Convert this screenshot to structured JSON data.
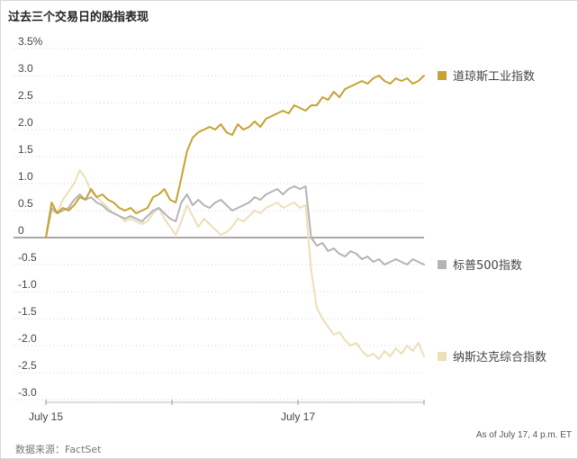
{
  "chart_data": {
    "type": "line",
    "title": "过去三个交易日的股指表现",
    "ylim": [
      -3.0,
      3.5
    ],
    "ytick_values": [
      3.5,
      3.0,
      2.5,
      2.0,
      1.5,
      1.0,
      0.5,
      0,
      -0.5,
      -1.0,
      -1.5,
      -2.0,
      -2.5,
      -3.0
    ],
    "ytick_labels": [
      "3.5%",
      "3.0",
      "2.5",
      "2.0",
      "1.5",
      "1.0",
      "0.5",
      "0",
      "-0.5",
      "-1.0",
      "-1.5",
      "-2.0",
      "-2.5",
      "-3.0"
    ],
    "xticks": [
      "July 15",
      "",
      "July 17",
      ""
    ],
    "grid": true,
    "legend_position": "right",
    "note": "As of July 17, 4 p.m. ET",
    "source": "数据来源：FactSet",
    "series": [
      {
        "name": "道琼斯工业指数",
        "color": "#c6a332",
        "values": [
          0,
          0.65,
          0.45,
          0.55,
          0.5,
          0.6,
          0.75,
          0.7,
          0.9,
          0.75,
          0.8,
          0.7,
          0.65,
          0.55,
          0.5,
          0.55,
          0.45,
          0.5,
          0.55,
          0.75,
          0.8,
          0.9,
          0.7,
          0.65,
          1.1,
          1.6,
          1.85,
          1.95,
          2.0,
          2.05,
          2.0,
          2.1,
          1.95,
          1.9,
          2.1,
          2.0,
          2.05,
          2.15,
          2.05,
          2.2,
          2.25,
          2.3,
          2.35,
          2.3,
          2.45,
          2.4,
          2.35,
          2.45,
          2.45,
          2.6,
          2.55,
          2.7,
          2.6,
          2.75,
          2.8,
          2.85,
          2.9,
          2.85,
          2.95,
          3.0,
          2.9,
          2.85,
          2.95,
          2.9,
          2.95,
          2.85,
          2.9,
          3.0
        ]
      },
      {
        "name": "标普500指数",
        "color": "#b4b4b4",
        "values": [
          0,
          0.55,
          0.45,
          0.5,
          0.55,
          0.7,
          0.8,
          0.7,
          0.75,
          0.65,
          0.6,
          0.5,
          0.45,
          0.4,
          0.35,
          0.4,
          0.35,
          0.3,
          0.4,
          0.5,
          0.55,
          0.45,
          0.35,
          0.3,
          0.65,
          0.8,
          0.6,
          0.7,
          0.6,
          0.55,
          0.65,
          0.7,
          0.6,
          0.5,
          0.55,
          0.6,
          0.65,
          0.75,
          0.7,
          0.8,
          0.85,
          0.9,
          0.8,
          0.9,
          0.95,
          0.9,
          0.95,
          0,
          -0.15,
          -0.1,
          -0.25,
          -0.2,
          -0.3,
          -0.35,
          -0.25,
          -0.3,
          -0.4,
          -0.35,
          -0.45,
          -0.4,
          -0.5,
          -0.45,
          -0.4,
          -0.45,
          -0.5,
          -0.4,
          -0.45,
          -0.5
        ]
      },
      {
        "name": "纳斯达克综合指数",
        "color": "#ecdfba",
        "values": [
          0,
          0.5,
          0.45,
          0.7,
          0.85,
          1.0,
          1.25,
          1.1,
          0.85,
          0.75,
          0.65,
          0.55,
          0.45,
          0.4,
          0.3,
          0.35,
          0.3,
          0.25,
          0.3,
          0.45,
          0.55,
          0.35,
          0.2,
          0.05,
          0.3,
          0.6,
          0.4,
          0.2,
          0.35,
          0.25,
          0.15,
          0.05,
          0.1,
          0.2,
          0.35,
          0.3,
          0.4,
          0.5,
          0.45,
          0.55,
          0.6,
          0.65,
          0.55,
          0.6,
          0.65,
          0.55,
          0.6,
          -0.6,
          -1.3,
          -1.5,
          -1.65,
          -1.8,
          -1.75,
          -1.9,
          -2.0,
          -1.95,
          -2.1,
          -2.2,
          -2.15,
          -2.25,
          -2.1,
          -2.2,
          -2.05,
          -2.15,
          -2.0,
          -2.1,
          -1.95,
          -2.2
        ]
      }
    ]
  }
}
